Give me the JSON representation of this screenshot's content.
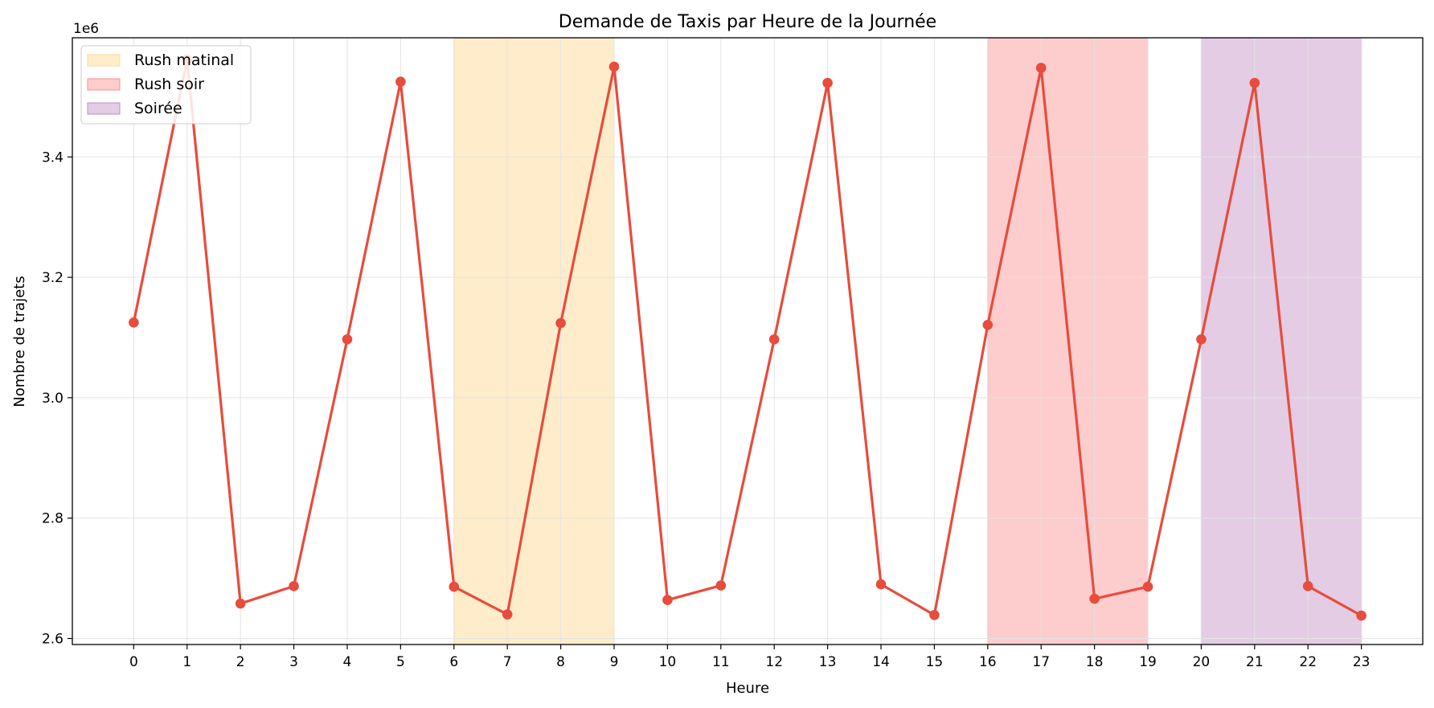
{
  "chart_data": {
    "type": "line",
    "title": "Demande de Taxis par Heure de la Journée",
    "xlabel": "Heure",
    "ylabel": "Nombre de trajets",
    "y_offset_label": "1e6",
    "x": [
      0,
      1,
      2,
      3,
      4,
      5,
      6,
      7,
      8,
      9,
      10,
      11,
      12,
      13,
      14,
      15,
      16,
      17,
      18,
      19,
      20,
      21,
      22,
      23
    ],
    "xlim": [
      -1.15,
      24.15
    ],
    "ylim": [
      2.59,
      3.598
    ],
    "yticks": [
      2.6,
      2.8,
      3.0,
      3.2,
      3.4
    ],
    "ytick_labels": [
      "2.6",
      "2.8",
      "3.0",
      "3.2",
      "3.4"
    ],
    "grid": true,
    "legend_position": "top-left",
    "series": [
      {
        "color": "#e74c3c",
        "values": [
          3.125,
          3.562,
          2.658,
          2.687,
          3.097,
          3.525,
          2.686,
          2.64,
          3.124,
          3.55,
          2.664,
          2.688,
          3.097,
          3.523,
          2.69,
          2.639,
          3.121,
          3.548,
          2.666,
          2.686,
          3.097,
          3.523,
          2.687,
          2.638
        ]
      }
    ],
    "bands": [
      {
        "label": "Rush matinal",
        "x_start": 6,
        "x_end": 9,
        "color": "#fdd996",
        "opacity": 0.5
      },
      {
        "label": "Rush soir",
        "x_start": 16,
        "x_end": 19,
        "color": "#fa8e8e",
        "opacity": 0.45
      },
      {
        "label": "Soirée",
        "x_start": 20,
        "x_end": 23,
        "color": "#c08dc4",
        "opacity": 0.45
      }
    ]
  }
}
